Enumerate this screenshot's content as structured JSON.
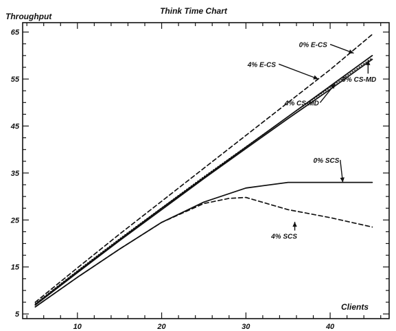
{
  "chart_data": {
    "type": "line",
    "title": "Think Time Chart",
    "xlabel": "Clients",
    "ylabel": "Throughput",
    "xlim": [
      3.5,
      47
    ],
    "ylim": [
      4,
      67
    ],
    "x_ticks": [
      10,
      20,
      30,
      40
    ],
    "y_ticks": [
      5,
      15,
      25,
      35,
      45,
      55,
      65
    ],
    "x_minor_step": 2,
    "y_minor_step": 2.5,
    "grid": false,
    "series": [
      {
        "name": "0% E-CS",
        "style": "dashed",
        "x": [
          5,
          10,
          15,
          20,
          25,
          30,
          35,
          40,
          45
        ],
        "y": [
          7.5,
          14.8,
          22.0,
          29.0,
          36.0,
          43.0,
          50.0,
          57.0,
          64.5
        ]
      },
      {
        "name": "4% E-CS",
        "style": "solid",
        "x": [
          5,
          10,
          15,
          20,
          25,
          30,
          35,
          40,
          45
        ],
        "y": [
          7.0,
          14.0,
          20.8,
          27.5,
          34.0,
          40.5,
          47.0,
          53.5,
          60.0
        ]
      },
      {
        "name": "0% CS-MD",
        "style": "dotted",
        "x": [
          5,
          10,
          15,
          20,
          25,
          30,
          35,
          40,
          45
        ],
        "y": [
          7.2,
          14.2,
          21.0,
          27.6,
          34.2,
          40.6,
          47.0,
          53.2,
          59.5
        ]
      },
      {
        "name": "4% CS-MD",
        "style": "solid",
        "x": [
          5,
          10,
          15,
          20,
          25,
          30,
          35,
          40,
          45
        ],
        "y": [
          6.9,
          13.8,
          20.6,
          27.2,
          33.8,
          40.2,
          46.6,
          52.8,
          59.2
        ]
      },
      {
        "name": "0% SCS",
        "style": "solid",
        "x": [
          5,
          10,
          15,
          20,
          25,
          30,
          35,
          40,
          45
        ],
        "y": [
          6.5,
          12.8,
          18.8,
          24.5,
          28.8,
          31.8,
          33.0,
          33.0,
          33.0
        ]
      },
      {
        "name": "4% SCS",
        "style": "dashed",
        "x": [
          5,
          10,
          15,
          20,
          25,
          28,
          30,
          35,
          40,
          45
        ],
        "y": [
          6.5,
          12.8,
          18.8,
          24.5,
          28.5,
          29.6,
          29.8,
          27.2,
          25.5,
          23.5
        ]
      }
    ],
    "annotations": [
      {
        "text": "0% E-CS",
        "label_at": [
          36.3,
          61.8
        ],
        "point_to": [
          42.8,
          60.5
        ]
      },
      {
        "text": "4% E-CS",
        "label_at": [
          30.2,
          57.6
        ],
        "point_to": [
          38.6,
          55.0
        ]
      },
      {
        "text": "0% CS-MD",
        "label_at": [
          41.4,
          54.4
        ],
        "point_to": [
          44.5,
          59.0
        ]
      },
      {
        "text": "4% CS-MD",
        "label_at": [
          34.6,
          49.4
        ],
        "point_to": [
          40.6,
          54.0
        ]
      },
      {
        "text": "0% SCS",
        "label_at": [
          38.0,
          37.2
        ],
        "point_to": [
          41.5,
          33.0
        ]
      },
      {
        "text": "4% SCS",
        "label_at": [
          33.0,
          21.0
        ],
        "point_to": [
          35.8,
          24.6
        ]
      }
    ]
  }
}
